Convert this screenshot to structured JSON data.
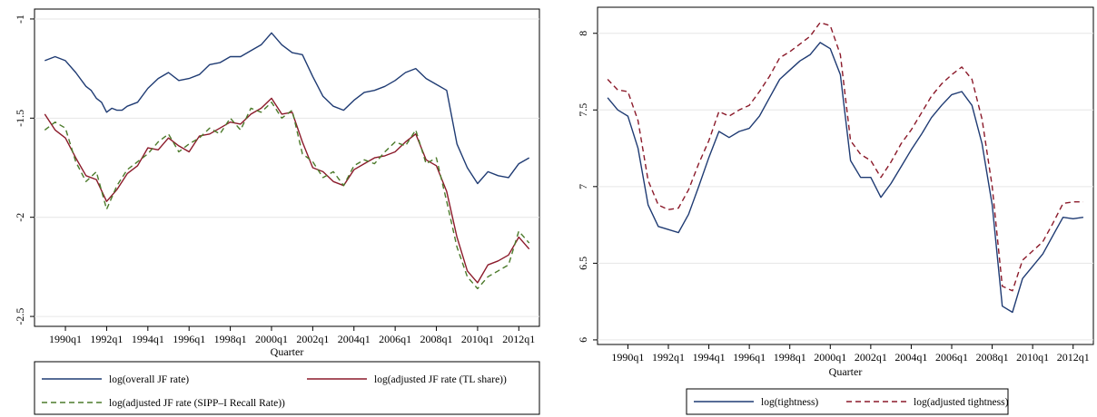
{
  "chart_data": [
    {
      "type": "line",
      "xlabel": "Quarter",
      "ylabel": "",
      "ylim": [
        -2.55,
        -0.95
      ],
      "yticks": [
        "-1",
        "-1.5",
        "-2",
        "-2.5"
      ],
      "ytick_values": [
        -1,
        -1.5,
        -2,
        -2.5
      ],
      "xticks": [
        "1990q1",
        "1992q1",
        "1994q1",
        "1996q1",
        "1998q1",
        "2000q1",
        "2002q1",
        "2004q1",
        "2006q1",
        "2008q1",
        "2010q1",
        "2012q1"
      ],
      "xtick_values": [
        1990,
        1992,
        1994,
        1996,
        1998,
        2000,
        2002,
        2004,
        2006,
        2008,
        2010,
        2012
      ],
      "xlim": [
        1988.5,
        2013.0
      ],
      "grid": "horizontal",
      "legend_placement": "bottom",
      "series": [
        {
          "name": "log(overall JF rate)",
          "color": "#1f3b73",
          "dash": "solid",
          "x": [
            1989.0,
            1989.5,
            1990.0,
            1990.5,
            1991.0,
            1991.25,
            1991.5,
            1991.75,
            1992.0,
            1992.25,
            1992.5,
            1992.75,
            1993.0,
            1993.5,
            1994.0,
            1994.5,
            1995.0,
            1995.5,
            1996.0,
            1996.5,
            1997.0,
            1997.5,
            1998.0,
            1998.5,
            1999.0,
            1999.5,
            2000.0,
            2000.5,
            2001.0,
            2001.5,
            2002.0,
            2002.5,
            2003.0,
            2003.5,
            2004.0,
            2004.5,
            2005.0,
            2005.5,
            2006.0,
            2006.5,
            2007.0,
            2007.5,
            2008.0,
            2008.5,
            2009.0,
            2009.5,
            2010.0,
            2010.5,
            2011.0,
            2011.5,
            2012.0,
            2012.5
          ],
          "values": [
            -1.21,
            -1.19,
            -1.21,
            -1.27,
            -1.34,
            -1.36,
            -1.4,
            -1.42,
            -1.47,
            -1.45,
            -1.46,
            -1.46,
            -1.44,
            -1.42,
            -1.35,
            -1.3,
            -1.27,
            -1.31,
            -1.3,
            -1.28,
            -1.23,
            -1.22,
            -1.19,
            -1.19,
            -1.16,
            -1.13,
            -1.07,
            -1.13,
            -1.17,
            -1.18,
            -1.29,
            -1.39,
            -1.44,
            -1.46,
            -1.41,
            -1.37,
            -1.36,
            -1.34,
            -1.31,
            -1.27,
            -1.25,
            -1.3,
            -1.33,
            -1.36,
            -1.63,
            -1.75,
            -1.83,
            -1.77,
            -1.79,
            -1.8,
            -1.73,
            -1.7
          ]
        },
        {
          "name": "log(adjusted JF rate (TL share))",
          "color": "#8b1a2a",
          "dash": "solid",
          "x": [
            1989.0,
            1989.5,
            1990.0,
            1990.5,
            1991.0,
            1991.5,
            1992.0,
            1992.5,
            1993.0,
            1993.5,
            1994.0,
            1994.5,
            1995.0,
            1995.5,
            1996.0,
            1996.5,
            1997.0,
            1997.5,
            1998.0,
            1998.5,
            1999.0,
            1999.5,
            2000.0,
            2000.5,
            2001.0,
            2001.5,
            2002.0,
            2002.5,
            2003.0,
            2003.5,
            2004.0,
            2004.5,
            2005.0,
            2005.5,
            2006.0,
            2006.5,
            2007.0,
            2007.5,
            2008.0,
            2008.5,
            2009.0,
            2009.5,
            2010.0,
            2010.5,
            2011.0,
            2011.5,
            2012.0,
            2012.5
          ],
          "values": [
            -1.48,
            -1.56,
            -1.6,
            -1.7,
            -1.79,
            -1.81,
            -1.92,
            -1.86,
            -1.78,
            -1.74,
            -1.65,
            -1.66,
            -1.6,
            -1.64,
            -1.67,
            -1.59,
            -1.58,
            -1.55,
            -1.52,
            -1.53,
            -1.48,
            -1.45,
            -1.4,
            -1.48,
            -1.47,
            -1.62,
            -1.75,
            -1.77,
            -1.82,
            -1.84,
            -1.76,
            -1.73,
            -1.7,
            -1.69,
            -1.67,
            -1.62,
            -1.58,
            -1.71,
            -1.74,
            -1.87,
            -2.1,
            -2.27,
            -2.33,
            -2.24,
            -2.22,
            -2.19,
            -2.1,
            -2.16
          ]
        },
        {
          "name": "log(adjusted JF rate (SIPP–I Recall Rate))",
          "color": "#4b7a2a",
          "dash": "dashed",
          "x": [
            1989.0,
            1989.5,
            1990.0,
            1990.5,
            1991.0,
            1991.5,
            1992.0,
            1992.5,
            1993.0,
            1993.5,
            1994.0,
            1994.5,
            1995.0,
            1995.5,
            1996.0,
            1996.5,
            1997.0,
            1997.5,
            1998.0,
            1998.5,
            1999.0,
            1999.5,
            2000.0,
            2000.5,
            2001.0,
            2001.5,
            2002.0,
            2002.5,
            2003.0,
            2003.5,
            2004.0,
            2004.5,
            2005.0,
            2005.5,
            2006.0,
            2006.5,
            2007.0,
            2007.5,
            2008.0,
            2008.5,
            2009.0,
            2009.5,
            2010.0,
            2010.5,
            2011.0,
            2011.5,
            2012.0,
            2012.5
          ],
          "values": [
            -1.56,
            -1.52,
            -1.55,
            -1.72,
            -1.82,
            -1.77,
            -1.96,
            -1.84,
            -1.76,
            -1.72,
            -1.68,
            -1.62,
            -1.58,
            -1.67,
            -1.63,
            -1.6,
            -1.55,
            -1.58,
            -1.5,
            -1.56,
            -1.45,
            -1.47,
            -1.42,
            -1.5,
            -1.46,
            -1.68,
            -1.72,
            -1.8,
            -1.77,
            -1.84,
            -1.74,
            -1.71,
            -1.73,
            -1.67,
            -1.62,
            -1.64,
            -1.56,
            -1.73,
            -1.7,
            -1.92,
            -2.15,
            -2.3,
            -2.36,
            -2.3,
            -2.27,
            -2.24,
            -2.07,
            -2.13
          ]
        }
      ]
    },
    {
      "type": "line",
      "xlabel": "Quarter",
      "ylabel": "",
      "ylim": [
        5.97,
        8.17
      ],
      "yticks": [
        "8",
        "7.5",
        "7",
        "6.5",
        "6"
      ],
      "ytick_values": [
        8,
        7.5,
        7,
        6.5,
        6
      ],
      "xticks": [
        "1990q1",
        "1992q1",
        "1994q1",
        "1996q1",
        "1998q1",
        "2000q1",
        "2002q1",
        "2004q1",
        "2006q1",
        "2008q1",
        "2010q1",
        "2012q1"
      ],
      "xtick_values": [
        1990,
        1992,
        1994,
        1996,
        1998,
        2000,
        2002,
        2004,
        2006,
        2008,
        2010,
        2012
      ],
      "xlim": [
        1988.5,
        2013.0
      ],
      "grid": "horizontal",
      "legend_placement": "bottom",
      "series": [
        {
          "name": "log(tightness)",
          "color": "#1f3b73",
          "dash": "solid",
          "x": [
            1989.0,
            1989.5,
            1990.0,
            1990.5,
            1991.0,
            1991.5,
            1992.0,
            1992.5,
            1993.0,
            1993.5,
            1994.0,
            1994.5,
            1995.0,
            1995.5,
            1996.0,
            1996.5,
            1997.0,
            1997.5,
            1998.0,
            1998.5,
            1999.0,
            1999.5,
            2000.0,
            2000.5,
            2001.0,
            2001.5,
            2002.0,
            2002.5,
            2003.0,
            2003.5,
            2004.0,
            2004.5,
            2005.0,
            2005.5,
            2006.0,
            2006.5,
            2007.0,
            2007.5,
            2008.0,
            2008.5,
            2009.0,
            2009.5,
            2010.0,
            2010.5,
            2011.0,
            2011.5,
            2012.0,
            2012.5
          ],
          "values": [
            7.58,
            7.5,
            7.46,
            7.25,
            6.88,
            6.74,
            6.72,
            6.7,
            6.82,
            7.0,
            7.19,
            7.36,
            7.32,
            7.36,
            7.38,
            7.46,
            7.58,
            7.7,
            7.76,
            7.82,
            7.86,
            7.94,
            7.9,
            7.73,
            7.17,
            7.06,
            7.06,
            6.93,
            7.02,
            7.13,
            7.24,
            7.34,
            7.45,
            7.53,
            7.6,
            7.62,
            7.53,
            7.28,
            6.88,
            6.22,
            6.18,
            6.4,
            6.48,
            6.56,
            6.68,
            6.8,
            6.79,
            6.8
          ]
        },
        {
          "name": "log(adjusted tightness)",
          "color": "#8b1a2a",
          "dash": "dashed",
          "x": [
            1989.0,
            1989.5,
            1990.0,
            1990.5,
            1991.0,
            1991.5,
            1992.0,
            1992.5,
            1993.0,
            1993.5,
            1994.0,
            1994.5,
            1995.0,
            1995.5,
            1996.0,
            1996.5,
            1997.0,
            1997.5,
            1998.0,
            1998.5,
            1999.0,
            1999.5,
            2000.0,
            2000.5,
            2001.0,
            2001.5,
            2002.0,
            2002.5,
            2003.0,
            2003.5,
            2004.0,
            2004.5,
            2005.0,
            2005.5,
            2006.0,
            2006.5,
            2007.0,
            2007.5,
            2008.0,
            2008.5,
            2009.0,
            2009.5,
            2010.0,
            2010.5,
            2011.0,
            2011.5,
            2012.0,
            2012.5
          ],
          "values": [
            7.7,
            7.63,
            7.62,
            7.43,
            7.04,
            6.88,
            6.85,
            6.86,
            6.98,
            7.15,
            7.3,
            7.49,
            7.46,
            7.5,
            7.53,
            7.62,
            7.72,
            7.84,
            7.88,
            7.93,
            7.98,
            8.07,
            8.05,
            7.86,
            7.3,
            7.21,
            7.17,
            7.06,
            7.16,
            7.28,
            7.37,
            7.48,
            7.59,
            7.67,
            7.73,
            7.78,
            7.7,
            7.44,
            7.0,
            6.35,
            6.32,
            6.52,
            6.58,
            6.64,
            6.76,
            6.89,
            6.9,
            6.9
          ]
        }
      ]
    }
  ]
}
